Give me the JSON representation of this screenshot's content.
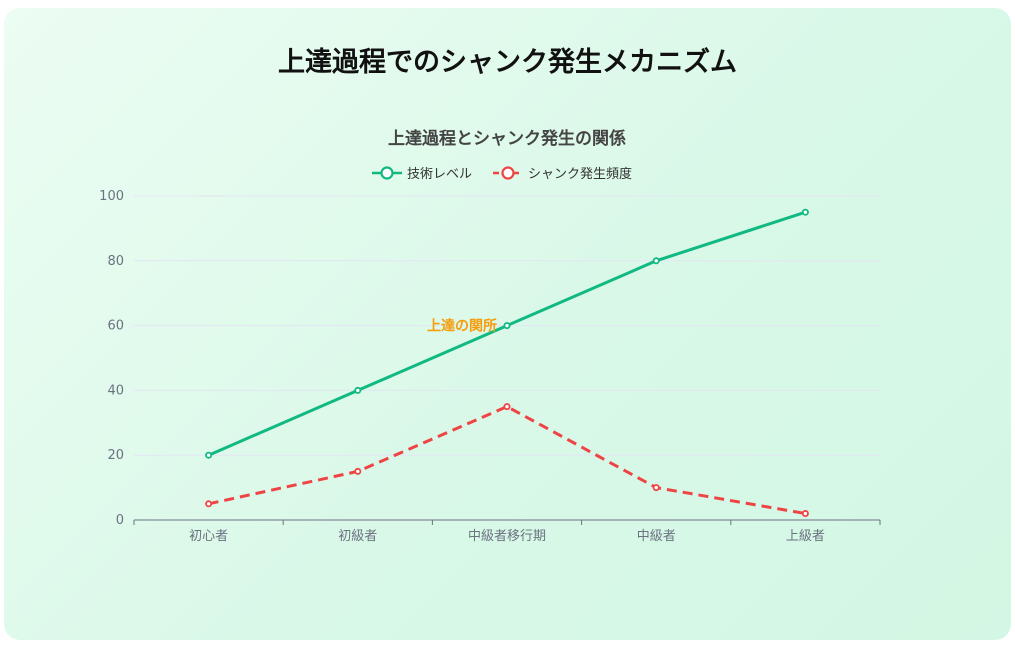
{
  "page_title": "上達過程でのシャンク発生メカニズム",
  "chart_data": {
    "type": "line",
    "title": "上達過程とシャンク発生の関係",
    "categories": [
      "初心者",
      "初級者",
      "中級者移行期",
      "中級者",
      "上級者"
    ],
    "series": [
      {
        "name": "技術レベル",
        "values": [
          20,
          40,
          60,
          80,
          95
        ],
        "color": "#10b981",
        "dashed": false
      },
      {
        "name": "シャンク発生頻度",
        "values": [
          5,
          15,
          35,
          10,
          2
        ],
        "color": "#ef4444",
        "dashed": true
      }
    ],
    "ylim": [
      0,
      100
    ],
    "yticks": [
      0,
      20,
      40,
      60,
      80,
      100
    ],
    "grid": true,
    "legend": "top-center",
    "annotations": [
      {
        "text": "上達の関所",
        "category": "中級者移行期",
        "y": 60,
        "color": "#f59e0b"
      }
    ]
  }
}
